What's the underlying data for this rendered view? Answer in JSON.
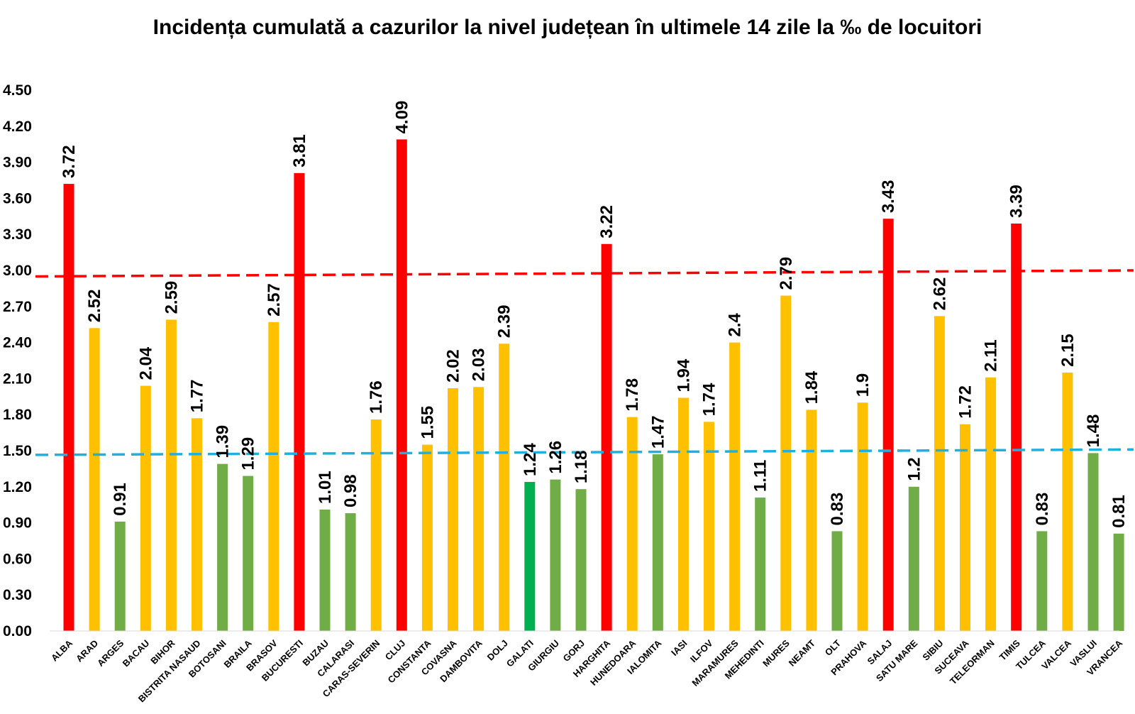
{
  "chart_data": {
    "type": "bar",
    "title": "Incidența cumulată a cazurilor la nivel județean în ultimele 14 zile la ‰ de locuitori",
    "xlabel": "",
    "ylabel": "",
    "ylim": [
      0,
      4.5
    ],
    "yticks": [
      "0.00",
      "0.30",
      "0.60",
      "0.90",
      "1.20",
      "1.50",
      "1.80",
      "2.10",
      "2.40",
      "2.70",
      "3.00",
      "3.30",
      "3.60",
      "3.90",
      "4.20",
      "4.50"
    ],
    "grid": false,
    "legend": "none",
    "categories": [
      "ALBA",
      "ARAD",
      "ARGES",
      "BACAU",
      "BIHOR",
      "BISTRITA NASAUD",
      "BOTOSANI",
      "BRAILA",
      "BRASOV",
      "BUCURESTI",
      "BUZAU",
      "CALARASI",
      "CARAS-SEVERIN",
      "CLUJ",
      "CONSTANTA",
      "COVASNA",
      "DAMBOVITA",
      "DOLJ",
      "GALATI",
      "GIURGIU",
      "GORJ",
      "HARGHITA",
      "HUNEDOARA",
      "IALOMITA",
      "IASI",
      "ILFOV",
      "MARAMURES",
      "MEHEDINTI",
      "MURES",
      "NEAMT",
      "OLT",
      "PRAHOVA",
      "SALAJ",
      "SATU MARE",
      "SIBIU",
      "SUCEAVA",
      "TELEORMAN",
      "TIMIS",
      "TULCEA",
      "VALCEA",
      "VASLUI",
      "VRANCEA"
    ],
    "values": [
      3.72,
      2.52,
      0.91,
      2.04,
      2.59,
      1.77,
      1.39,
      1.29,
      2.57,
      3.81,
      1.01,
      0.98,
      1.76,
      4.09,
      1.55,
      2.02,
      2.03,
      2.39,
      1.24,
      1.26,
      1.18,
      3.22,
      1.78,
      1.47,
      1.94,
      1.74,
      2.4,
      1.11,
      2.79,
      1.84,
      0.83,
      1.9,
      3.43,
      1.2,
      2.62,
      1.72,
      2.11,
      3.39,
      0.83,
      2.15,
      1.48,
      0.81
    ],
    "value_labels": [
      "3.72",
      "2.52",
      "0.91",
      "2.04",
      "2.59",
      "1.77",
      "1.39",
      "1.29",
      "2.57",
      "3.81",
      "1.01",
      "0.98",
      "1.76",
      "4.09",
      "1.55",
      "2.02",
      "2.03",
      "2.39",
      "1.24",
      "1.26",
      "1.18",
      "3.22",
      "1.78",
      "1.47",
      "1.94",
      "1.74",
      "2.4",
      "1.11",
      "2.79",
      "1.84",
      "0.83",
      "1.9",
      "3.43",
      "1.2",
      "2.62",
      "1.72",
      "2.11",
      "3.39",
      "0.83",
      "2.15",
      "1.48",
      "0.81"
    ],
    "bar_colors": [
      "#ff0000",
      "#ffc000",
      "#70ad47",
      "#ffc000",
      "#ffc000",
      "#ffc000",
      "#70ad47",
      "#70ad47",
      "#ffc000",
      "#ff0000",
      "#70ad47",
      "#70ad47",
      "#ffc000",
      "#ff0000",
      "#ffc000",
      "#ffc000",
      "#ffc000",
      "#ffc000",
      "#00b050",
      "#70ad47",
      "#70ad47",
      "#ff0000",
      "#ffc000",
      "#70ad47",
      "#ffc000",
      "#ffc000",
      "#ffc000",
      "#70ad47",
      "#ffc000",
      "#ffc000",
      "#70ad47",
      "#ffc000",
      "#ff0000",
      "#70ad47",
      "#ffc000",
      "#ffc000",
      "#ffc000",
      "#ff0000",
      "#70ad47",
      "#ffc000",
      "#70ad47",
      "#70ad47"
    ],
    "reference_lines": [
      {
        "color": "#ff0000",
        "y_start": 2.95,
        "y_end": 3.0,
        "style": "dashed"
      },
      {
        "color": "#1fb0e0",
        "y_start": 1.465,
        "y_end": 1.51,
        "style": "dashed"
      }
    ]
  }
}
